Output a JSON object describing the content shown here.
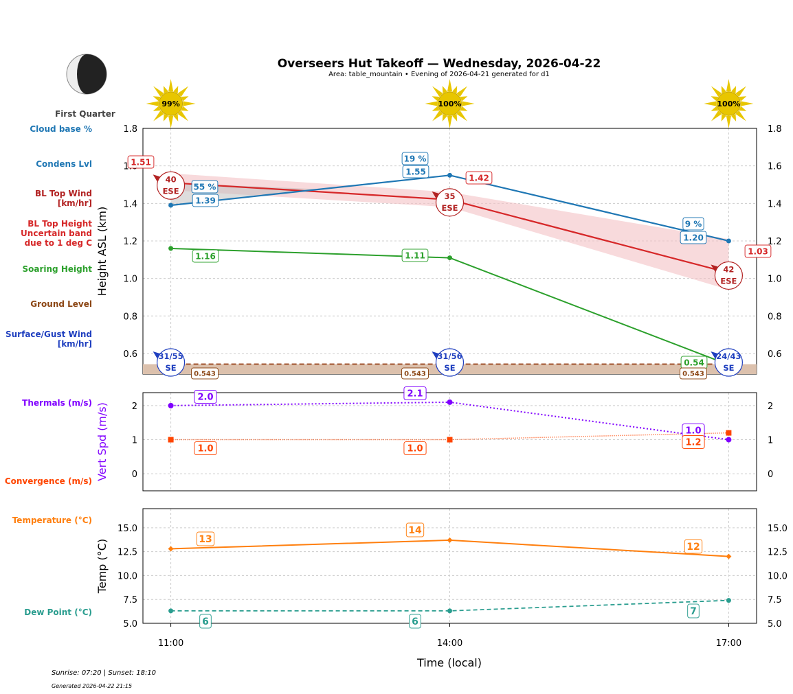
{
  "title": "Overseers Hut Takeoff — Wednesday, 2026-04-22",
  "subtitle": "Area: table_mountain • Evening of 2026-04-21 generated for d1",
  "moon": {
    "phase": "First Quarter"
  },
  "sun": [
    {
      "time": "11:00",
      "label": "99%"
    },
    {
      "time": "14:00",
      "label": "100%"
    },
    {
      "time": "17:00",
      "label": "100%"
    }
  ],
  "left_labels": {
    "cloud_base": "Cloud base %",
    "condens": "Condens Lvl",
    "bl_wind": [
      "BL Top Wind",
      "[km/hr]"
    ],
    "bl_height": [
      "BL Top Height",
      "Uncertain band",
      "due to 1 deg C"
    ],
    "soaring": "Soaring Height",
    "ground": "Ground Level",
    "surface_wind": [
      "Surface/Gust Wind",
      "[km/hr]"
    ],
    "thermals": "Thermals (m/s)",
    "convergence": "Convergence (m/s)",
    "temperature": "Temperature (°C)",
    "dew_point": "Dew Point (°C)"
  },
  "colors": {
    "cloud": "#1f77b4",
    "bl": "#d62728",
    "soaring": "#2ca02c",
    "ground": "#8b4513",
    "surface": "#1f3fbf",
    "thermal": "#8000ff",
    "conv": "#ff4500",
    "temp": "#ff7f0e",
    "dew": "#2a9d8f"
  },
  "footer": {
    "sun_times": "Sunrise: 07:20 | Sunset: 18:10",
    "generated": "Generated 2026-04-22 21:15"
  },
  "chart_data": [
    {
      "type": "line",
      "ylabel": "Height ASL (km)",
      "ylim": [
        0.49,
        1.8
      ],
      "yticks": [
        0.6,
        0.8,
        1.0,
        1.2,
        1.4,
        1.6,
        1.8
      ],
      "x": [
        "11:00",
        "14:00",
        "17:00"
      ],
      "grid": true,
      "series": [
        {
          "name": "Condens Lvl",
          "values": [
            1.39,
            1.55,
            1.2
          ],
          "labels": [
            "1.39",
            "1.55",
            "1.20"
          ],
          "cloud_pct": [
            "55 %",
            "19 %",
            "9 %"
          ]
        },
        {
          "name": "BL Top Height",
          "values": [
            1.51,
            1.42,
            1.03
          ],
          "labels": [
            "1.51",
            "1.42",
            "1.03"
          ],
          "band_upper": [
            1.56,
            1.46,
            1.21
          ],
          "band_lower": [
            1.47,
            1.38,
            0.94
          ]
        },
        {
          "name": "Soaring Height",
          "values": [
            1.16,
            1.11,
            0.54
          ],
          "labels": [
            "1.16",
            "1.11",
            "0.54"
          ]
        },
        {
          "name": "Ground Level",
          "values": [
            0.543,
            0.543,
            0.543
          ],
          "labels": [
            "0.543",
            "0.543",
            "0.543"
          ]
        }
      ],
      "bl_wind": [
        {
          "speed": "40",
          "dir": "ESE"
        },
        {
          "speed": "35",
          "dir": "ESE"
        },
        {
          "speed": "42",
          "dir": "ESE"
        }
      ],
      "surface_wind": [
        {
          "speed": "31/55",
          "dir": "SE"
        },
        {
          "speed": "31/56",
          "dir": "SE"
        },
        {
          "speed": "24/43",
          "dir": "SE"
        }
      ]
    },
    {
      "type": "line",
      "ylabel": "Vert Spd (m/s)",
      "ylim": [
        -0.5,
        2.38
      ],
      "yticks": [
        0,
        1,
        2
      ],
      "x": [
        "11:00",
        "14:00",
        "17:00"
      ],
      "series": [
        {
          "name": "Thermals (m/s)",
          "values": [
            2.0,
            2.1,
            1.0
          ],
          "labels": [
            "2.0",
            "2.1",
            "1.0"
          ]
        },
        {
          "name": "Convergence (m/s)",
          "values": [
            1.0,
            1.0,
            1.2
          ],
          "labels": [
            "1.0",
            "1.0",
            "1.2"
          ]
        }
      ]
    },
    {
      "type": "line",
      "ylabel": "Temp (°C)",
      "xlabel": "Time (local)",
      "ylim": [
        5.0,
        17.0
      ],
      "yticks": [
        5.0,
        7.5,
        10.0,
        12.5,
        15.0
      ],
      "ytick_labels": [
        "5.0",
        "7.5",
        "10.0",
        "12.5",
        "15.0"
      ],
      "x": [
        "11:00",
        "14:00",
        "17:00"
      ],
      "series": [
        {
          "name": "Temperature (°C)",
          "values": [
            12.8,
            13.7,
            12.0
          ],
          "labels": [
            "13",
            "14",
            "12"
          ]
        },
        {
          "name": "Dew Point (°C)",
          "values": [
            6.3,
            6.3,
            7.4
          ],
          "labels": [
            "6",
            "6",
            "7"
          ]
        }
      ]
    }
  ]
}
